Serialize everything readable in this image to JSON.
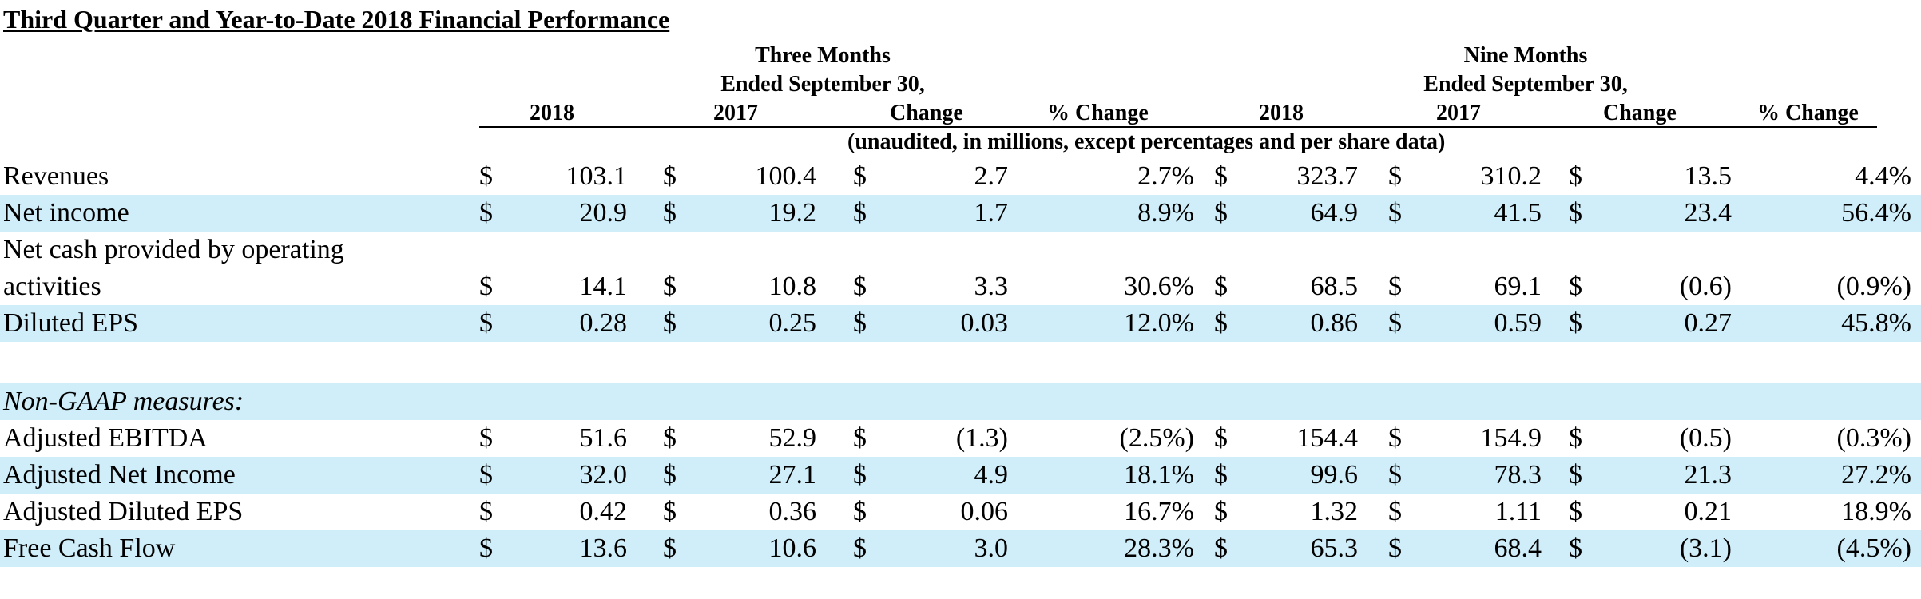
{
  "title": "Third Quarter and Year-to-Date 2018 Financial Performance",
  "header": {
    "three_months_l1": "Three Months",
    "three_months_l2": "Ended September 30,",
    "nine_months_l1": "Nine Months",
    "nine_months_l2": "Ended September 30,",
    "columns": [
      "2018",
      "2017",
      "Change",
      "% Change",
      "2018",
      "2017",
      "Change",
      "% Change"
    ],
    "units": "(unaudited, in millions, except percentages and per share data)"
  },
  "currency_symbol": "$",
  "rows": [
    {
      "label": "Revenues",
      "values": [
        "103.1",
        "100.4",
        "2.7",
        "2.7%",
        "323.7",
        "310.2",
        "13.5",
        "4.4%"
      ]
    },
    {
      "label": "Net income",
      "values": [
        "20.9",
        "19.2",
        "1.7",
        "8.9%",
        "64.9",
        "41.5",
        "23.4",
        "56.4%"
      ]
    },
    {
      "label": "Net cash provided by operating activities",
      "values": [
        "14.1",
        "10.8",
        "3.3",
        "30.6%",
        "68.5",
        "69.1",
        "(0.6)",
        "(0.9%)"
      ]
    },
    {
      "label": "Diluted EPS",
      "values": [
        "0.28",
        "0.25",
        "0.03",
        "12.0%",
        "0.86",
        "0.59",
        "0.27",
        "45.8%"
      ]
    }
  ],
  "non_gaap_label": "Non-GAAP measures:",
  "non_gaap_rows": [
    {
      "label": "Adjusted EBITDA",
      "values": [
        "51.6",
        "52.9",
        "(1.3)",
        "(2.5%)",
        "154.4",
        "154.9",
        "(0.5)",
        "(0.3%)"
      ]
    },
    {
      "label": "Adjusted Net Income",
      "values": [
        "32.0",
        "27.1",
        "4.9",
        "18.1%",
        "99.6",
        "78.3",
        "21.3",
        "27.2%"
      ]
    },
    {
      "label": "Adjusted Diluted EPS",
      "values": [
        "0.42",
        "0.36",
        "0.06",
        "16.7%",
        "1.32",
        "1.11",
        "0.21",
        "18.9%"
      ]
    },
    {
      "label": "Free Cash Flow",
      "values": [
        "13.6",
        "10.6",
        "3.0",
        "28.3%",
        "65.3",
        "68.4",
        "(3.1)",
        "(4.5%)"
      ]
    }
  ],
  "colors": {
    "row_shade": "#d0eef9",
    "text": "#000000"
  }
}
